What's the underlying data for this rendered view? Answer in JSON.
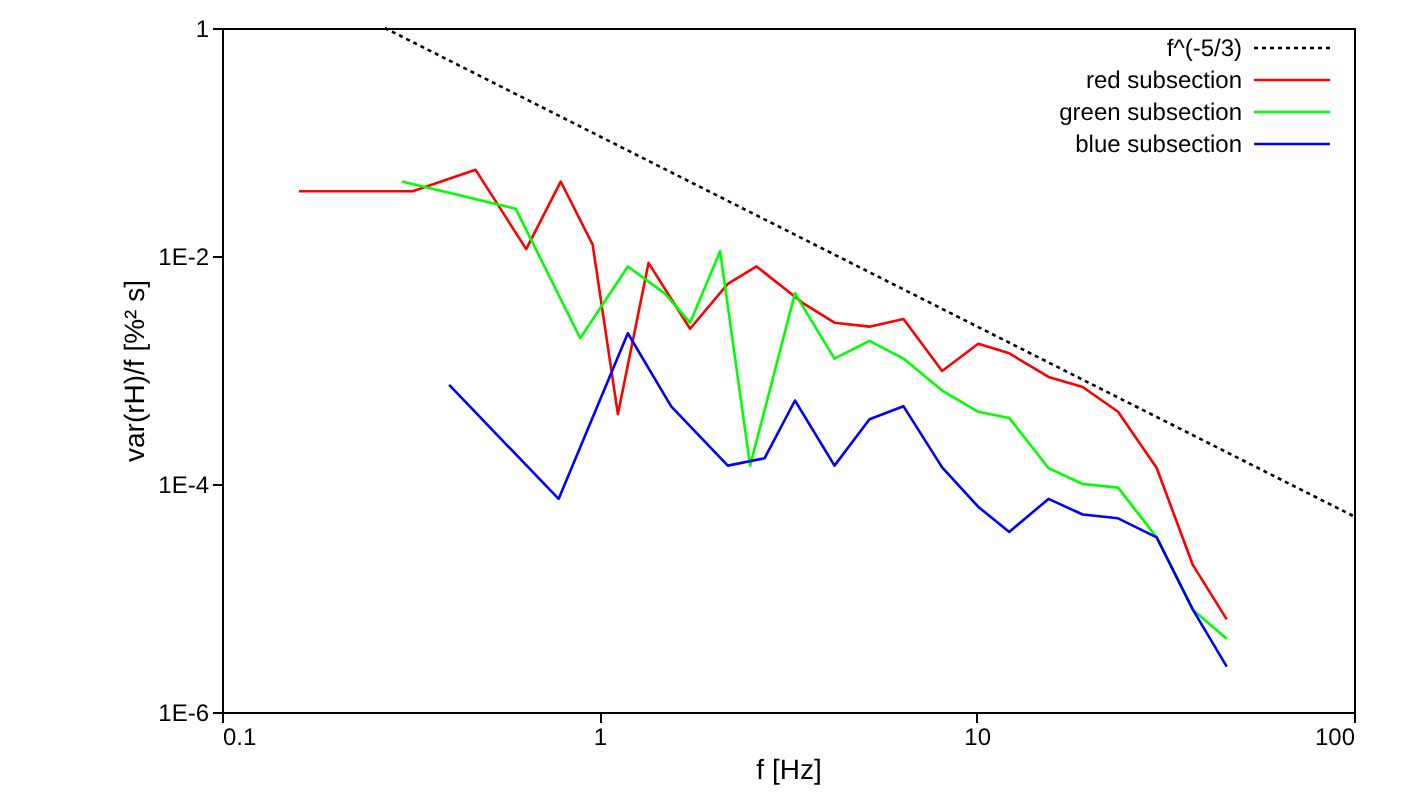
{
  "chart_data": {
    "type": "line",
    "xlabel": "f [Hz]",
    "ylabel": "var(rH)/f [%² s]",
    "log": "xy",
    "grid": false,
    "legend": "top right",
    "marker": "none",
    "xlim": [
      0.1,
      100
    ],
    "xticks": [
      0.1,
      1,
      10,
      100
    ],
    "ylim": [
      1e-06,
      1
    ],
    "yticks": [
      {
        "value": 1e-06,
        "label": "1E-6"
      },
      {
        "value": 0.0001,
        "label": "1E-4"
      },
      {
        "value": 0.01,
        "label": "1E-2"
      },
      1
    ],
    "series": [
      {
        "name": "f^(-5/3)",
        "color": "#000000",
        "line_style": "dotted",
        "x": [
          0.27,
          100
        ],
        "values": [
          1,
          5.2e-05
        ]
      },
      {
        "name": "red subsection",
        "color": "#ff0000",
        "line_style": "solid",
        "x": [
          0.16,
          0.32,
          0.47,
          0.64,
          0.79,
          0.96,
          1.12,
          1.35,
          1.74,
          2.19,
          2.61,
          3.49,
          4.2,
          5.2,
          6.4,
          8.1,
          10.1,
          12.2,
          15.5,
          19.1,
          23.7,
          30,
          37.4,
          46
        ],
        "values": [
          0.037,
          0.037,
          0.057,
          0.0115,
          0.045,
          0.0126,
          0.00041,
          0.0087,
          0.0023,
          0.0057,
          0.0081,
          0.0038,
          0.0026,
          0.0024,
          0.0028,
          0.00098,
          0.0017,
          0.0014,
          0.00087,
          0.00071,
          0.00043,
          0.000138,
          1.95e-05,
          6.5e-06
        ]
      },
      {
        "name": "green subsection",
        "color": "#00ff00",
        "line_style": "solid",
        "x": [
          0.3,
          0.6,
          0.89,
          1.19,
          1.49,
          1.74,
          2.09,
          2.51,
          3.3,
          4.2,
          5.2,
          6.4,
          8.1,
          10.1,
          12.2,
          15.5,
          19.1,
          23.7,
          30,
          37.4,
          46
        ],
        "values": [
          0.045,
          0.026,
          0.0019,
          0.0081,
          0.0047,
          0.0026,
          0.011,
          0.000145,
          0.0047,
          0.00126,
          0.0018,
          0.00126,
          0.00066,
          0.00043,
          0.00038,
          0.000138,
          0.0001,
          9.3e-05,
          3.4e-05,
          7.9e-06,
          4.4e-06
        ]
      },
      {
        "name": "blue subsection",
        "color": "#0000ff",
        "line_style": "solid",
        "x": [
          0.4,
          0.78,
          1.19,
          1.55,
          2.19,
          2.74,
          3.3,
          4.2,
          5.2,
          6.4,
          8.1,
          10.1,
          12.2,
          15.5,
          19.1,
          23.7,
          30,
          37.4,
          46
        ],
        "values": [
          0.00074,
          7.4e-05,
          0.0021,
          0.00048,
          0.000145,
          0.000168,
          0.00054,
          0.000145,
          0.00037,
          0.00048,
          0.00014,
          6.3e-05,
          3.8e-05,
          7.4e-05,
          5.4e-05,
          5e-05,
          3.4e-05,
          7.9e-06,
          2.5e-06
        ]
      }
    ]
  }
}
